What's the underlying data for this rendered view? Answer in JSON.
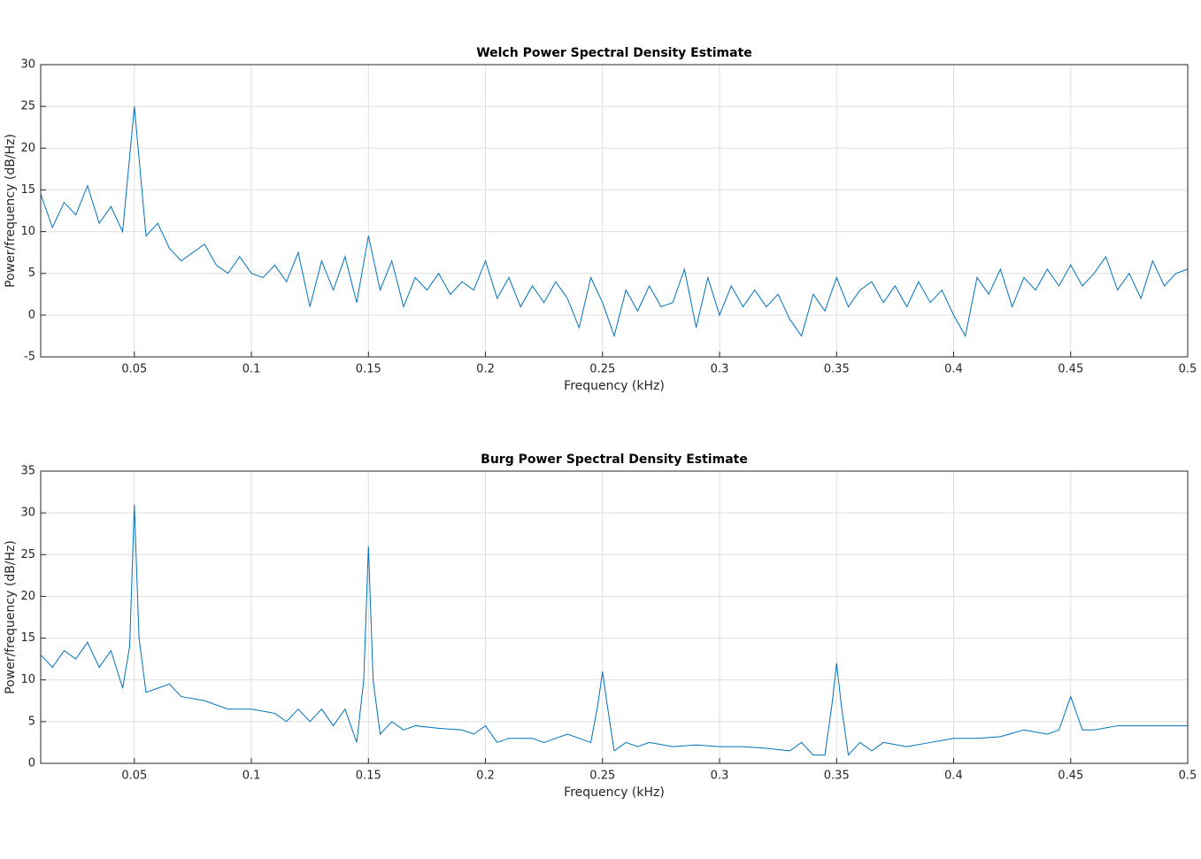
{
  "chart_data": [
    {
      "type": "line",
      "title": "Welch Power Spectral Density Estimate",
      "xlabel": "Frequency (kHz)",
      "ylabel": "Power/frequency (dB/Hz)",
      "color": "#0072bd",
      "grid": true,
      "x": [
        0.01,
        0.015,
        0.02,
        0.025,
        0.03,
        0.035,
        0.04,
        0.045,
        0.05,
        0.055,
        0.06,
        0.065,
        0.07,
        0.075,
        0.08,
        0.085,
        0.09,
        0.095,
        0.1,
        0.105,
        0.11,
        0.115,
        0.12,
        0.125,
        0.13,
        0.135,
        0.14,
        0.145,
        0.15,
        0.155,
        0.16,
        0.165,
        0.17,
        0.175,
        0.18,
        0.185,
        0.19,
        0.195,
        0.2,
        0.205,
        0.21,
        0.215,
        0.22,
        0.225,
        0.23,
        0.235,
        0.24,
        0.245,
        0.25,
        0.255,
        0.26,
        0.265,
        0.27,
        0.275,
        0.28,
        0.285,
        0.29,
        0.295,
        0.3,
        0.305,
        0.31,
        0.315,
        0.32,
        0.325,
        0.33,
        0.335,
        0.34,
        0.345,
        0.35,
        0.355,
        0.36,
        0.365,
        0.37,
        0.375,
        0.38,
        0.385,
        0.39,
        0.395,
        0.4,
        0.405,
        0.41,
        0.415,
        0.42,
        0.425,
        0.43,
        0.435,
        0.44,
        0.445,
        0.45,
        0.455,
        0.46,
        0.465,
        0.47,
        0.475,
        0.48,
        0.485,
        0.49,
        0.495,
        0.5
      ],
      "values": [
        14.5,
        10.5,
        13.5,
        12,
        15.5,
        11,
        13,
        10,
        25,
        9.5,
        11,
        8,
        6.5,
        7.5,
        8.5,
        6,
        5,
        7,
        5,
        4.5,
        6,
        4,
        7.5,
        1,
        6.5,
        3,
        7,
        1.5,
        9.5,
        3,
        6.5,
        1,
        4.5,
        3,
        5,
        2.5,
        4,
        3,
        6.5,
        2,
        4.5,
        1,
        3.5,
        1.5,
        4,
        2,
        -1.5,
        4.5,
        1.5,
        -2.5,
        3,
        0.5,
        3.5,
        1,
        1.5,
        5.5,
        -1.5,
        4.5,
        0,
        3.5,
        1,
        3,
        1,
        2.5,
        -0.5,
        -2.5,
        2.5,
        0.5,
        4.5,
        1,
        3,
        4,
        1.5,
        3.5,
        1,
        4,
        1.5,
        3,
        0,
        -2.5,
        4.5,
        2.5,
        5.5,
        1,
        4.5,
        3,
        5.5,
        3.5,
        6,
        3.5,
        5,
        7,
        3,
        5,
        2,
        6.5,
        3.5,
        5,
        5.5
      ],
      "xlim": [
        0.01,
        0.5
      ],
      "xticks": [
        0.05,
        0.1,
        0.15,
        0.2,
        0.25,
        0.3,
        0.35,
        0.4,
        0.45,
        0.5
      ],
      "ylim": [
        -5,
        30
      ],
      "yticks": [
        -5,
        0,
        5,
        10,
        15,
        20,
        25,
        30
      ]
    },
    {
      "type": "line",
      "title": "Burg Power Spectral Density Estimate",
      "xlabel": "Frequency (kHz)",
      "ylabel": "Power/frequency (dB/Hz)",
      "color": "#0072bd",
      "grid": true,
      "x": [
        0.01,
        0.015,
        0.02,
        0.025,
        0.03,
        0.035,
        0.04,
        0.045,
        0.048,
        0.05,
        0.052,
        0.055,
        0.06,
        0.065,
        0.07,
        0.08,
        0.09,
        0.1,
        0.11,
        0.115,
        0.12,
        0.125,
        0.13,
        0.135,
        0.14,
        0.145,
        0.148,
        0.15,
        0.152,
        0.155,
        0.16,
        0.165,
        0.17,
        0.18,
        0.19,
        0.195,
        0.2,
        0.205,
        0.21,
        0.22,
        0.225,
        0.23,
        0.235,
        0.24,
        0.245,
        0.248,
        0.25,
        0.252,
        0.255,
        0.26,
        0.265,
        0.27,
        0.28,
        0.29,
        0.3,
        0.31,
        0.32,
        0.33,
        0.335,
        0.34,
        0.345,
        0.348,
        0.35,
        0.352,
        0.355,
        0.36,
        0.365,
        0.37,
        0.38,
        0.39,
        0.4,
        0.41,
        0.42,
        0.43,
        0.44,
        0.445,
        0.45,
        0.455,
        0.46,
        0.47,
        0.48,
        0.49,
        0.5
      ],
      "values": [
        13,
        11.5,
        13.5,
        12.5,
        14.5,
        11.5,
        13.5,
        9,
        14,
        31,
        15,
        8.5,
        9,
        9.5,
        8,
        7.5,
        6.5,
        6.5,
        6,
        5,
        6.5,
        5,
        6.5,
        4.5,
        6.5,
        2.5,
        10,
        26,
        10,
        3.5,
        5,
        4,
        4.5,
        4.2,
        4,
        3.5,
        4.5,
        2.5,
        3,
        3,
        2.5,
        3,
        3.5,
        3,
        2.5,
        7,
        11,
        7,
        1.5,
        2.5,
        2,
        2.5,
        2,
        2.2,
        2,
        2,
        1.8,
        1.5,
        2.5,
        1,
        1,
        7,
        12,
        7,
        1,
        2.5,
        1.5,
        2.5,
        2,
        2.5,
        3,
        3,
        3.2,
        4,
        3.5,
        4,
        8,
        4,
        4,
        4.5,
        4.5,
        4.5,
        4.5
      ],
      "xlim": [
        0.01,
        0.5
      ],
      "xticks": [
        0.05,
        0.1,
        0.15,
        0.2,
        0.25,
        0.3,
        0.35,
        0.4,
        0.45,
        0.5
      ],
      "ylim": [
        0,
        35
      ],
      "yticks": [
        0,
        5,
        10,
        15,
        20,
        25,
        30,
        35
      ]
    }
  ]
}
